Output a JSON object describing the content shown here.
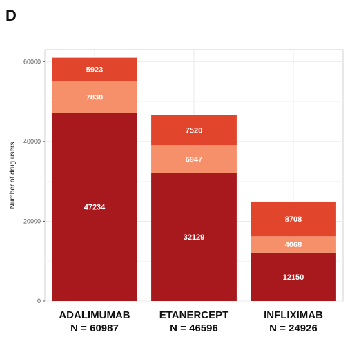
{
  "panel_label": "D",
  "chart_data": {
    "type": "bar",
    "stacked": true,
    "categories": [
      "ADALIMUMAB",
      "ETANERCEPT",
      "INFLIXIMAB"
    ],
    "category_subtitles": [
      "N = 60987",
      "N = 46596",
      "N = 24926"
    ],
    "ylabel": "Number of drug users",
    "xlabel": "",
    "ylim": [
      0,
      63000
    ],
    "yticks": [
      0,
      20000,
      40000,
      60000
    ],
    "grid": true,
    "legend": "none",
    "series": [
      {
        "values": [
          47234,
          32129,
          12150
        ],
        "color": "#a8191e"
      },
      {
        "values": [
          7830,
          6947,
          4068
        ],
        "color": "#f5906a"
      },
      {
        "values": [
          5923,
          7520,
          8708
        ],
        "color": "#e1452b"
      }
    ]
  }
}
